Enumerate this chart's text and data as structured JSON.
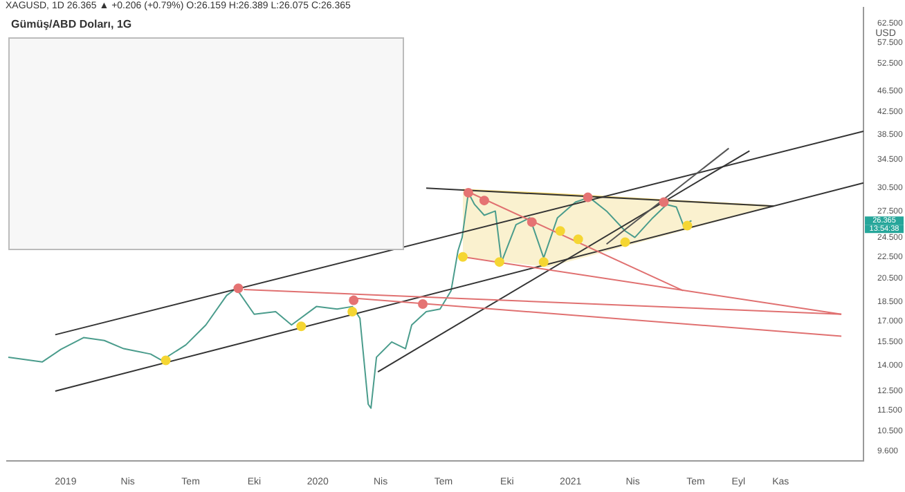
{
  "chart_data": {
    "type": "line",
    "title": "Gümüş/ABD Doları, 1G",
    "subtitle": "XAGUSD, 1D 26.365 ▲ +0.206 (+0.79%) O:26.159 H:26.389 L:26.075 C:26.365",
    "ylabel": "USD",
    "log": true,
    "grid": false,
    "legend": false,
    "xlim": [
      "2018-10-08",
      "2022-03-01"
    ],
    "xticks": [
      {
        "value": "2019-01-01",
        "label": "2019"
      },
      {
        "value": "2019-04-01",
        "label": "Nis"
      },
      {
        "value": "2019-07-01",
        "label": "Tem"
      },
      {
        "value": "2019-10-01",
        "label": "Eki"
      },
      {
        "value": "2020-01-01",
        "label": "2020"
      },
      {
        "value": "2020-04-01",
        "label": "Nis"
      },
      {
        "value": "2020-07-01",
        "label": "Tem"
      },
      {
        "value": "2020-10-01",
        "label": "Eki"
      },
      {
        "value": "2021-01-01",
        "label": "2021"
      },
      {
        "value": "2021-04-01",
        "label": "Nis"
      },
      {
        "value": "2021-07-01",
        "label": "Tem"
      },
      {
        "value": "2021-09-01",
        "label": "Eyl"
      },
      {
        "value": "2021-11-01",
        "label": "Kas"
      }
    ],
    "ylim": [
      9.2,
      67
    ],
    "yticks": [
      {
        "value": 9.6,
        "label": "9.600"
      },
      {
        "value": 10.5,
        "label": "10.500"
      },
      {
        "value": 11.5,
        "label": "11.500"
      },
      {
        "value": 12.5,
        "label": "12.500"
      },
      {
        "value": 14,
        "label": "14.000"
      },
      {
        "value": 15.5,
        "label": "15.500"
      },
      {
        "value": 17,
        "label": "17.000"
      },
      {
        "value": 18.5,
        "label": "18.500"
      },
      {
        "value": 20.5,
        "label": "20.500"
      },
      {
        "value": 22.5,
        "label": "22.500"
      },
      {
        "value": 24.5,
        "label": "24.500"
      },
      {
        "value": 27.5,
        "label": "27.500"
      },
      {
        "value": 30.5,
        "label": "30.500"
      },
      {
        "value": 34.5,
        "label": "34.500"
      },
      {
        "value": 38.5,
        "label": "38.500"
      },
      {
        "value": 42.5,
        "label": "42.500"
      },
      {
        "value": 46.5,
        "label": "46.500"
      },
      {
        "value": 52.5,
        "label": "52.500"
      },
      {
        "value": 57.5,
        "label": "57.500"
      },
      {
        "value": 62.5,
        "label": "62.500"
      }
    ],
    "annotations": [
      "26.365",
      "13:54:38"
    ],
    "series": [
      {
        "type": "line",
        "color": "#f0d060",
        "x": [
          "2020-07-29",
          "2020-11-29",
          "2021-10-22"
        ],
        "values": [
          30.2,
          29.7,
          28.1
        ],
        "lower": [
          22.5,
          21.5,
          28.1
        ],
        "upper": [
          30.2,
          29.7,
          28.1
        ]
      },
      {
        "type": "line",
        "color": "#4a9c8c",
        "x": [
          "2018-10-10",
          "2018-11-28",
          "2018-12-25",
          "2019-01-27",
          "2019-02-26",
          "2019-03-26",
          "2019-05-04",
          "2019-05-20",
          "2019-06-24",
          "2019-07-23",
          "2019-08-22",
          "2019-09-05",
          "2019-10-01",
          "2019-11-01",
          "2019-11-24",
          "2019-12-30",
          "2020-01-29",
          "2020-02-20",
          "2020-03-02",
          "2020-03-14",
          "2020-03-18",
          "2020-03-26",
          "2020-04-17",
          "2020-05-07",
          "2020-05-16",
          "2020-06-06",
          "2020-06-26",
          "2020-07-12",
          "2020-07-22",
          "2020-07-28",
          "2020-08-06",
          "2020-08-15",
          "2020-08-29",
          "2020-09-14",
          "2020-09-23",
          "2020-10-14",
          "2020-11-03",
          "2020-11-23",
          "2020-12-13",
          "2021-01-08",
          "2021-01-28",
          "2021-02-22",
          "2021-03-21",
          "2021-04-04",
          "2021-04-30",
          "2021-05-20",
          "2021-06-03",
          "2021-06-13",
          "2021-06-25"
        ],
        "values": [
          14.5,
          14.2,
          15.0,
          15.8,
          15.6,
          15.05,
          14.7,
          14.3,
          15.3,
          16.7,
          19.0,
          19.6,
          17.5,
          17.7,
          16.7,
          18.1,
          17.9,
          18.1,
          17.2,
          11.8,
          11.6,
          14.5,
          15.5,
          15.05,
          16.7,
          17.7,
          17.9,
          19.4,
          23.1,
          24.5,
          29.8,
          28.3,
          27.0,
          27.5,
          22.0,
          25.9,
          26.7,
          22.4,
          26.7,
          28.6,
          29.2,
          27.5,
          25.2,
          24.5,
          26.7,
          28.3,
          28.0,
          25.9,
          26.365
        ]
      },
      {
        "type": "line",
        "color": "#333333",
        "x": [
          "2018-12-17",
          "2022-03-01"
        ],
        "values": [
          16.0,
          39.0
        ]
      },
      {
        "type": "line",
        "color": "#333333",
        "x": [
          "2018-12-17",
          "2022-03-01"
        ],
        "values": [
          12.5,
          31.1
        ]
      },
      {
        "type": "line",
        "color": "#333333",
        "x": [
          "2020-06-06",
          "2021-10-22"
        ],
        "values": [
          30.4,
          28.1
        ]
      },
      {
        "type": "line",
        "color": "#333333",
        "x": [
          "2020-03-28",
          "2021-09-17"
        ],
        "values": [
          13.6,
          35.8
        ]
      },
      {
        "type": "line",
        "color": "#555555",
        "x": [
          "2021-02-22",
          "2021-08-18"
        ],
        "values": [
          23.8,
          36.2
        ]
      },
      {
        "type": "line",
        "color": "#e07070",
        "x": [
          "2019-09-16",
          "2022-01-28"
        ],
        "values": [
          19.5,
          17.5
        ]
      },
      {
        "type": "line",
        "color": "#e07070",
        "x": [
          "2020-02-16",
          "2022-01-28"
        ],
        "values": [
          18.8,
          15.9
        ]
      },
      {
        "type": "line",
        "color": "#e07070",
        "x": [
          "2020-07-29",
          "2022-01-28"
        ],
        "values": [
          22.5,
          17.5
        ]
      },
      {
        "type": "line",
        "color": "#e07070",
        "x": [
          "2020-08-11",
          "2021-06-13"
        ],
        "values": [
          29.7,
          19.4
        ]
      },
      {
        "type": "scatter",
        "marker": "circle",
        "color": "#e57373",
        "x": [
          "2019-09-08",
          "2020-02-22",
          "2020-06-01",
          "2020-08-06",
          "2020-08-29",
          "2020-11-06",
          "2021-01-26",
          "2021-05-16"
        ],
        "values": [
          19.6,
          18.6,
          18.3,
          29.8,
          28.8,
          26.2,
          29.2,
          28.6
        ]
      },
      {
        "type": "scatter",
        "marker": "circle",
        "color": "#f5d633",
        "x": [
          "2019-05-26",
          "2019-12-08",
          "2020-02-20",
          "2020-07-29",
          "2020-09-20",
          "2020-11-23",
          "2020-12-17",
          "2021-01-12",
          "2021-03-21",
          "2021-06-19"
        ],
        "values": [
          14.3,
          16.6,
          17.7,
          22.5,
          22.0,
          22.0,
          25.2,
          24.3,
          24.0,
          25.8
        ]
      }
    ]
  }
}
